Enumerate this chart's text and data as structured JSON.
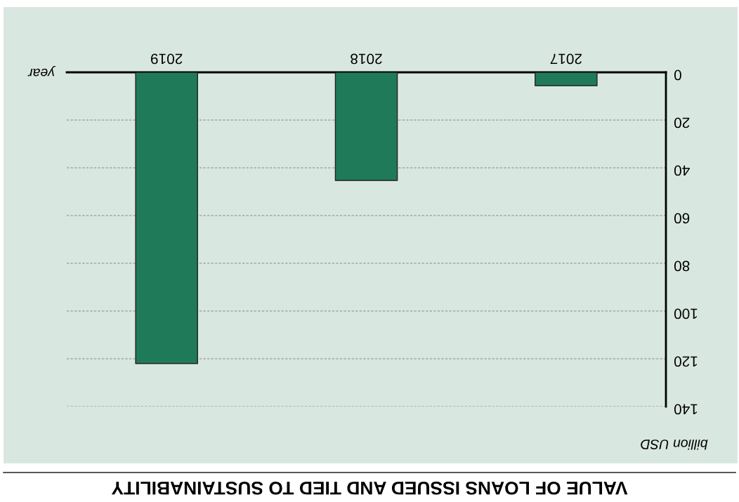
{
  "chart_data": {
    "type": "bar",
    "title": "VALUE OF LOANS ISSUED AND TIED TO SUSTAINABILITY",
    "xlabel": "year",
    "ylabel": "billion USD",
    "categories": [
      "2019",
      "2018",
      "2017"
    ],
    "values": [
      122,
      45.3,
      5.6
    ],
    "color": "#1f7a5a",
    "ylim": [
      140,
      0
    ],
    "yticks": [
      0,
      20,
      40,
      60,
      80,
      100,
      120,
      140
    ],
    "grid": "y"
  }
}
